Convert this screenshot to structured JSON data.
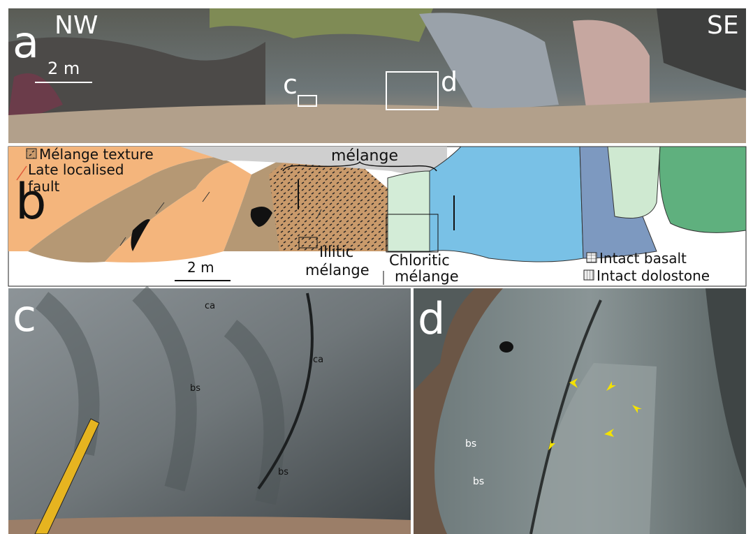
{
  "panels": {
    "a": {
      "label": "a",
      "left": "NW",
      "right": "SE",
      "scale": "2 m",
      "boxes": [
        "c",
        "d"
      ]
    },
    "b": {
      "label": "b",
      "legend": {
        "texture": "Mélange texture",
        "fault": [
          "Late localised",
          "fault"
        ],
        "basalt": "Intact basalt",
        "dolostone": "Intact dolostone"
      },
      "top_label": "mélange",
      "illitic": [
        "Illitic",
        "mélange"
      ],
      "chloritic": [
        "Chloritic",
        "mélange"
      ],
      "scale": "2 m"
    },
    "c": {
      "label": "c",
      "annotations": [
        "ca",
        "ca",
        "bs",
        "bs"
      ]
    },
    "d": {
      "label": "d",
      "annotations": [
        "bs",
        "bs"
      ]
    }
  }
}
